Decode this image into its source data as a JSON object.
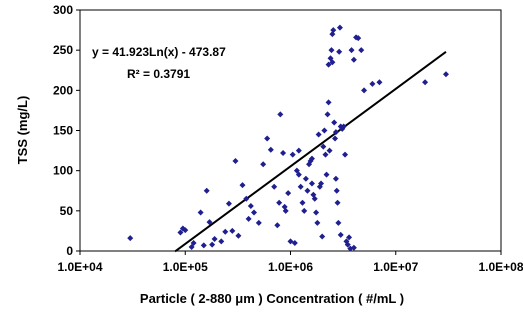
{
  "chart_data": {
    "type": "scatter",
    "title": "",
    "xlabel": "Particle ( 2-880 μm ) Concentration ( #/mL )",
    "ylabel": "TSS (mg/L)",
    "x_scale": "log",
    "xlim": [
      10000,
      100000000
    ],
    "ylim": [
      0,
      300
    ],
    "x_ticks": [
      10000,
      100000,
      1000000,
      10000000,
      100000000
    ],
    "x_tick_labels": [
      "1.0E+04",
      "1.0E+05",
      "1.0E+06",
      "1.0E+07",
      "1.0E+08"
    ],
    "y_ticks": [
      0,
      50,
      100,
      150,
      200,
      250,
      300
    ],
    "y_tick_labels": [
      "0",
      "50",
      "100",
      "150",
      "200",
      "250",
      "300"
    ],
    "grid": false,
    "legend": "none",
    "marker_color": "#1f1f8f",
    "trendline": {
      "equation": "y = 41.923Ln(x) - 473.87",
      "r_squared": "R² = 0.3791",
      "slope": 41.923,
      "intercept": -473.87,
      "x_range": [
        80000,
        30000000
      ],
      "color": "#000000"
    },
    "points": [
      [
        30000,
        16
      ],
      [
        95000,
        28
      ],
      [
        90000,
        23
      ],
      [
        100000,
        26
      ],
      [
        115000,
        5
      ],
      [
        120000,
        10
      ],
      [
        140000,
        48
      ],
      [
        150000,
        7
      ],
      [
        160000,
        75
      ],
      [
        170000,
        36
      ],
      [
        180000,
        8
      ],
      [
        190000,
        15
      ],
      [
        220000,
        12
      ],
      [
        240000,
        24
      ],
      [
        260000,
        59
      ],
      [
        280000,
        25
      ],
      [
        300000,
        112
      ],
      [
        320000,
        19
      ],
      [
        350000,
        82
      ],
      [
        380000,
        65
      ],
      [
        400000,
        40
      ],
      [
        420000,
        56
      ],
      [
        450000,
        48
      ],
      [
        500000,
        35
      ],
      [
        550000,
        108
      ],
      [
        600000,
        140
      ],
      [
        650000,
        126
      ],
      [
        700000,
        80
      ],
      [
        750000,
        32
      ],
      [
        780000,
        60
      ],
      [
        800000,
        170
      ],
      [
        850000,
        122
      ],
      [
        880000,
        55
      ],
      [
        900000,
        50
      ],
      [
        950000,
        72
      ],
      [
        1000000,
        12
      ],
      [
        1050000,
        120
      ],
      [
        1100000,
        10
      ],
      [
        1150000,
        100
      ],
      [
        1200000,
        125
      ],
      [
        1250000,
        80
      ],
      [
        1300000,
        60
      ],
      [
        1350000,
        50
      ],
      [
        1400000,
        90
      ],
      [
        1450000,
        75
      ],
      [
        1500000,
        108
      ],
      [
        1550000,
        112
      ],
      [
        1600000,
        115
      ],
      [
        1650000,
        70
      ],
      [
        1700000,
        65
      ],
      [
        1750000,
        48
      ],
      [
        1800000,
        35
      ],
      [
        1850000,
        145
      ],
      [
        1900000,
        80
      ],
      [
        1950000,
        84
      ],
      [
        2000000,
        18
      ],
      [
        2050000,
        130
      ],
      [
        2100000,
        150
      ],
      [
        2150000,
        120
      ],
      [
        2200000,
        95
      ],
      [
        2250000,
        170
      ],
      [
        2300000,
        185
      ],
      [
        2350000,
        125
      ],
      [
        2400000,
        240
      ],
      [
        2450000,
        250
      ],
      [
        2500000,
        270
      ],
      [
        2550000,
        275
      ],
      [
        2600000,
        160
      ],
      [
        2650000,
        140
      ],
      [
        2700000,
        90
      ],
      [
        2750000,
        75
      ],
      [
        2800000,
        60
      ],
      [
        2850000,
        35
      ],
      [
        2900000,
        248
      ],
      [
        2950000,
        278
      ],
      [
        3000000,
        155
      ],
      [
        3100000,
        152
      ],
      [
        3200000,
        155
      ],
      [
        3300000,
        120
      ],
      [
        3400000,
        12
      ],
      [
        3500000,
        8
      ],
      [
        3600000,
        17
      ],
      [
        3700000,
        3
      ],
      [
        3800000,
        250
      ],
      [
        4000000,
        238
      ],
      [
        4200000,
        266
      ],
      [
        4400000,
        265
      ],
      [
        4700000,
        250
      ],
      [
        5000000,
        200
      ],
      [
        6000000,
        208
      ],
      [
        7000000,
        210
      ],
      [
        19000000,
        210
      ],
      [
        30000000,
        220
      ],
      [
        4000000,
        4
      ],
      [
        3000000,
        20
      ],
      [
        2700000,
        148
      ],
      [
        2500000,
        235
      ],
      [
        2300000,
        232
      ],
      [
        1600000,
        84
      ],
      [
        1200000,
        95
      ]
    ]
  }
}
